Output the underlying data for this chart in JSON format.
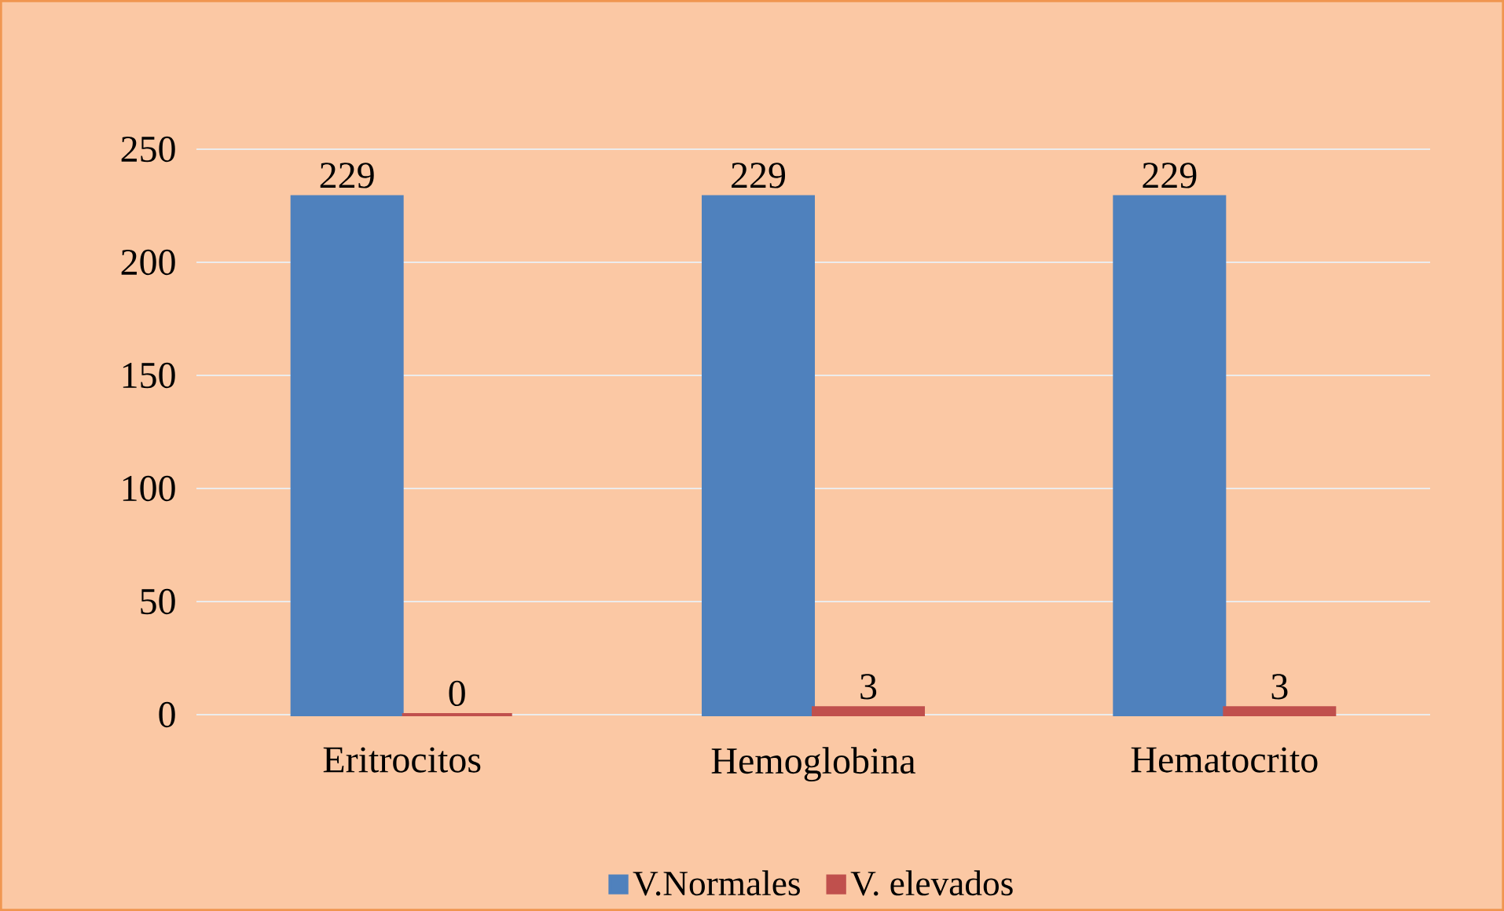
{
  "chart_data": {
    "type": "bar",
    "categories": [
      "Eritrocitos",
      "Hemoglobina",
      "Hematocrito"
    ],
    "series": [
      {
        "name": "V.Normales",
        "color": "#4f81bd",
        "values": [
          229,
          229,
          229
        ]
      },
      {
        "name": "V. elevados",
        "color": "#c0504d",
        "values": [
          0,
          3,
          3
        ]
      }
    ],
    "ylim": [
      0,
      250
    ],
    "yticks": [
      0,
      50,
      100,
      150,
      200,
      250
    ],
    "grid": "y",
    "legend": "bottom",
    "data_labels": true
  }
}
